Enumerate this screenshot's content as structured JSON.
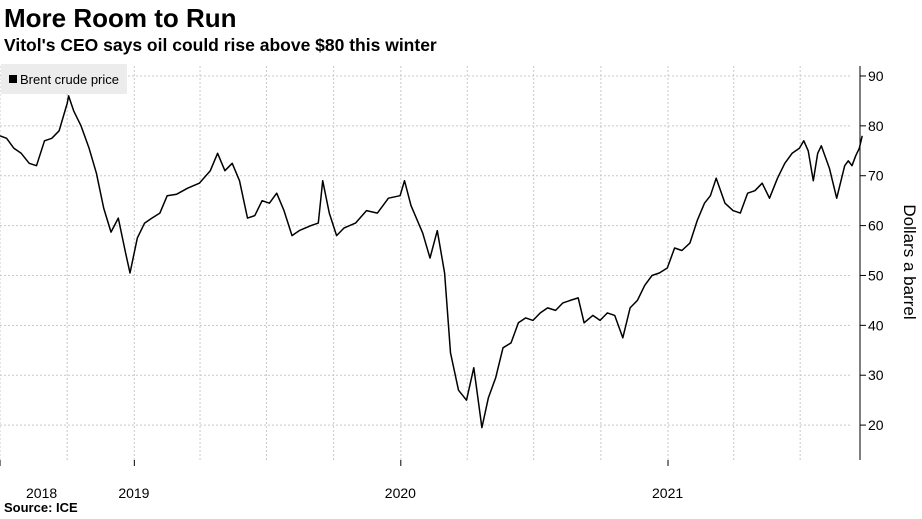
{
  "header": {
    "title": "More Room to Run",
    "subtitle": "Vitol's CEO says oil could rise above $80 this winter"
  },
  "footer": {
    "source": "Source: ICE"
  },
  "chart_data": {
    "type": "line",
    "title": "More Room to Run",
    "subtitle": "Vitol's CEO says oil could rise above $80 this winter",
    "ylabel": "Dollars a barrel",
    "xlabel": "",
    "ylim": [
      13,
      92
    ],
    "yticks": [
      20,
      30,
      40,
      50,
      60,
      70,
      80,
      90
    ],
    "xlim": [
      "2018-07-01",
      "2021-09-10"
    ],
    "xticks": [
      {
        "label": "2018",
        "x": "2018-07-01"
      },
      {
        "label": "2019",
        "x": "2019-01-01"
      },
      {
        "label": "2020",
        "x": "2020-01-01"
      },
      {
        "label": "2021",
        "x": "2021-01-01"
      }
    ],
    "grid": true,
    "legend_position": "top-left",
    "colors": {
      "line": "#000000",
      "grid": "#c8c8c8",
      "legend_bg": "#ececec"
    },
    "series": [
      {
        "name": "Brent crude price",
        "points": [
          [
            "2018-07-01",
            78.0
          ],
          [
            "2018-07-10",
            77.5
          ],
          [
            "2018-07-20",
            75.5
          ],
          [
            "2018-07-30",
            74.5
          ],
          [
            "2018-08-10",
            72.5
          ],
          [
            "2018-08-20",
            72.0
          ],
          [
            "2018-08-31",
            77.0
          ],
          [
            "2018-09-10",
            77.5
          ],
          [
            "2018-09-20",
            79.0
          ],
          [
            "2018-10-01",
            84.5
          ],
          [
            "2018-10-03",
            86.0
          ],
          [
            "2018-10-10",
            83.0
          ],
          [
            "2018-10-20",
            80.0
          ],
          [
            "2018-10-31",
            75.5
          ],
          [
            "2018-11-10",
            70.5
          ],
          [
            "2018-11-20",
            63.5
          ],
          [
            "2018-11-30",
            58.7
          ],
          [
            "2018-12-10",
            61.5
          ],
          [
            "2018-12-20",
            54.5
          ],
          [
            "2018-12-26",
            50.5
          ],
          [
            "2019-01-05",
            57.5
          ],
          [
            "2019-01-15",
            60.5
          ],
          [
            "2019-01-25",
            61.5
          ],
          [
            "2019-02-05",
            62.5
          ],
          [
            "2019-02-15",
            66.0
          ],
          [
            "2019-02-28",
            66.3
          ],
          [
            "2019-03-15",
            67.5
          ],
          [
            "2019-03-31",
            68.5
          ],
          [
            "2019-04-15",
            71.0
          ],
          [
            "2019-04-25",
            74.5
          ],
          [
            "2019-05-05",
            71.0
          ],
          [
            "2019-05-15",
            72.5
          ],
          [
            "2019-05-25",
            69.0
          ],
          [
            "2019-06-05",
            61.5
          ],
          [
            "2019-06-15",
            62.0
          ],
          [
            "2019-06-25",
            65.0
          ],
          [
            "2019-07-05",
            64.5
          ],
          [
            "2019-07-15",
            66.5
          ],
          [
            "2019-07-25",
            63.0
          ],
          [
            "2019-08-05",
            58.0
          ],
          [
            "2019-08-15",
            59.0
          ],
          [
            "2019-08-31",
            60.0
          ],
          [
            "2019-09-10",
            60.5
          ],
          [
            "2019-09-16",
            69.0
          ],
          [
            "2019-09-25",
            62.5
          ],
          [
            "2019-10-05",
            58.0
          ],
          [
            "2019-10-15",
            59.5
          ],
          [
            "2019-10-31",
            60.5
          ],
          [
            "2019-11-15",
            63.0
          ],
          [
            "2019-11-30",
            62.5
          ],
          [
            "2019-12-15",
            65.5
          ],
          [
            "2019-12-31",
            66.0
          ],
          [
            "2020-01-06",
            69.0
          ],
          [
            "2020-01-15",
            64.0
          ],
          [
            "2020-01-31",
            58.5
          ],
          [
            "2020-02-10",
            53.5
          ],
          [
            "2020-02-20",
            59.0
          ],
          [
            "2020-03-01",
            50.5
          ],
          [
            "2020-03-09",
            34.5
          ],
          [
            "2020-03-20",
            27.0
          ],
          [
            "2020-03-31",
            25.0
          ],
          [
            "2020-04-10",
            31.5
          ],
          [
            "2020-04-21",
            19.5
          ],
          [
            "2020-04-30",
            25.5
          ],
          [
            "2020-05-10",
            29.5
          ],
          [
            "2020-05-20",
            35.5
          ],
          [
            "2020-05-31",
            36.5
          ],
          [
            "2020-06-10",
            40.5
          ],
          [
            "2020-06-20",
            41.5
          ],
          [
            "2020-06-30",
            41.0
          ],
          [
            "2020-07-10",
            42.5
          ],
          [
            "2020-07-20",
            43.5
          ],
          [
            "2020-07-31",
            43.0
          ],
          [
            "2020-08-10",
            44.5
          ],
          [
            "2020-08-20",
            45.0
          ],
          [
            "2020-08-31",
            45.5
          ],
          [
            "2020-09-08",
            40.5
          ],
          [
            "2020-09-20",
            42.0
          ],
          [
            "2020-09-30",
            41.0
          ],
          [
            "2020-10-10",
            42.5
          ],
          [
            "2020-10-20",
            42.0
          ],
          [
            "2020-10-31",
            37.5
          ],
          [
            "2020-11-10",
            43.5
          ],
          [
            "2020-11-20",
            45.0
          ],
          [
            "2020-11-30",
            48.0
          ],
          [
            "2020-12-10",
            50.0
          ],
          [
            "2020-12-20",
            50.5
          ],
          [
            "2020-12-31",
            51.5
          ],
          [
            "2021-01-10",
            55.5
          ],
          [
            "2021-01-20",
            55.0
          ],
          [
            "2021-01-31",
            56.5
          ],
          [
            "2021-02-10",
            61.0
          ],
          [
            "2021-02-20",
            64.5
          ],
          [
            "2021-02-28",
            66.0
          ],
          [
            "2021-03-08",
            69.5
          ],
          [
            "2021-03-20",
            64.5
          ],
          [
            "2021-03-31",
            63.0
          ],
          [
            "2021-04-10",
            62.5
          ],
          [
            "2021-04-20",
            66.5
          ],
          [
            "2021-04-30",
            67.0
          ],
          [
            "2021-05-10",
            68.5
          ],
          [
            "2021-05-20",
            65.5
          ],
          [
            "2021-05-31",
            69.5
          ],
          [
            "2021-06-10",
            72.5
          ],
          [
            "2021-06-20",
            74.5
          ],
          [
            "2021-06-30",
            75.5
          ],
          [
            "2021-07-06",
            77.0
          ],
          [
            "2021-07-12",
            75.0
          ],
          [
            "2021-07-19",
            69.0
          ],
          [
            "2021-07-25",
            74.5
          ],
          [
            "2021-07-30",
            76.0
          ],
          [
            "2021-08-10",
            71.5
          ],
          [
            "2021-08-20",
            65.5
          ],
          [
            "2021-08-31",
            72.0
          ],
          [
            "2021-09-05",
            73.0
          ],
          [
            "2021-09-10",
            72.0
          ],
          [
            "2021-09-15",
            74.0
          ],
          [
            "2021-09-20",
            75.5
          ],
          [
            "2021-09-24",
            78.0
          ]
        ]
      }
    ]
  }
}
